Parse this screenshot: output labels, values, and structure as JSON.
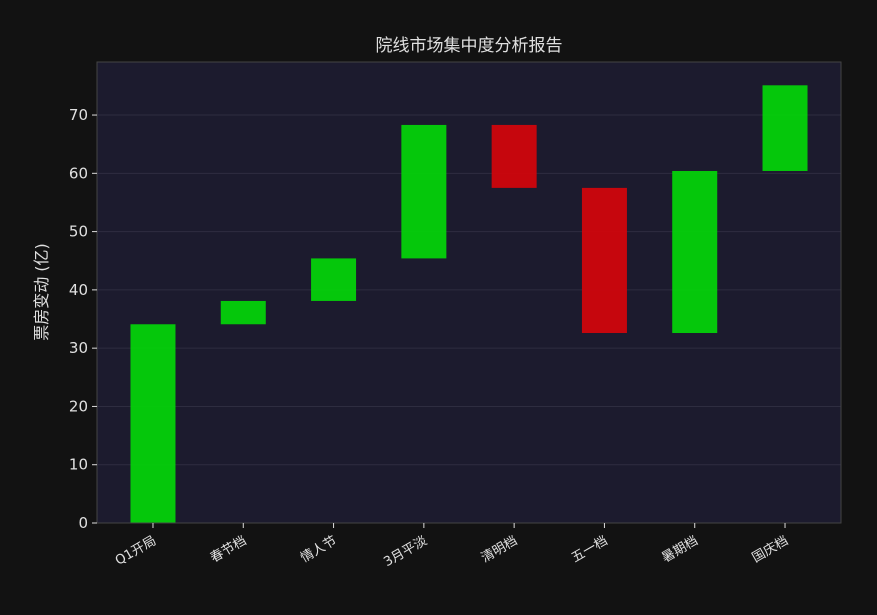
{
  "chart_data": {
    "type": "waterfall",
    "title": "院线市场集中度分析报告",
    "xlabel": "",
    "ylabel": "票房变动 (亿)",
    "categories": [
      "Q1开局",
      "春节档",
      "情人节",
      "3月平淡",
      "清明档",
      "五一档",
      "暑期档",
      "国庆档"
    ],
    "deltas": [
      34.1,
      4.0,
      7.3,
      22.9,
      -10.8,
      -24.9,
      27.8,
      14.7
    ],
    "ylim": [
      0,
      79.1
    ],
    "yticks": [
      0,
      10,
      20,
      30,
      40,
      50,
      60,
      70
    ],
    "grid": true,
    "colors": {
      "increase": "#04d10a",
      "decrease": "#d0050c",
      "background": "#121212",
      "plot_background": "#1c1b2e",
      "text": "#e0e0e0"
    }
  }
}
